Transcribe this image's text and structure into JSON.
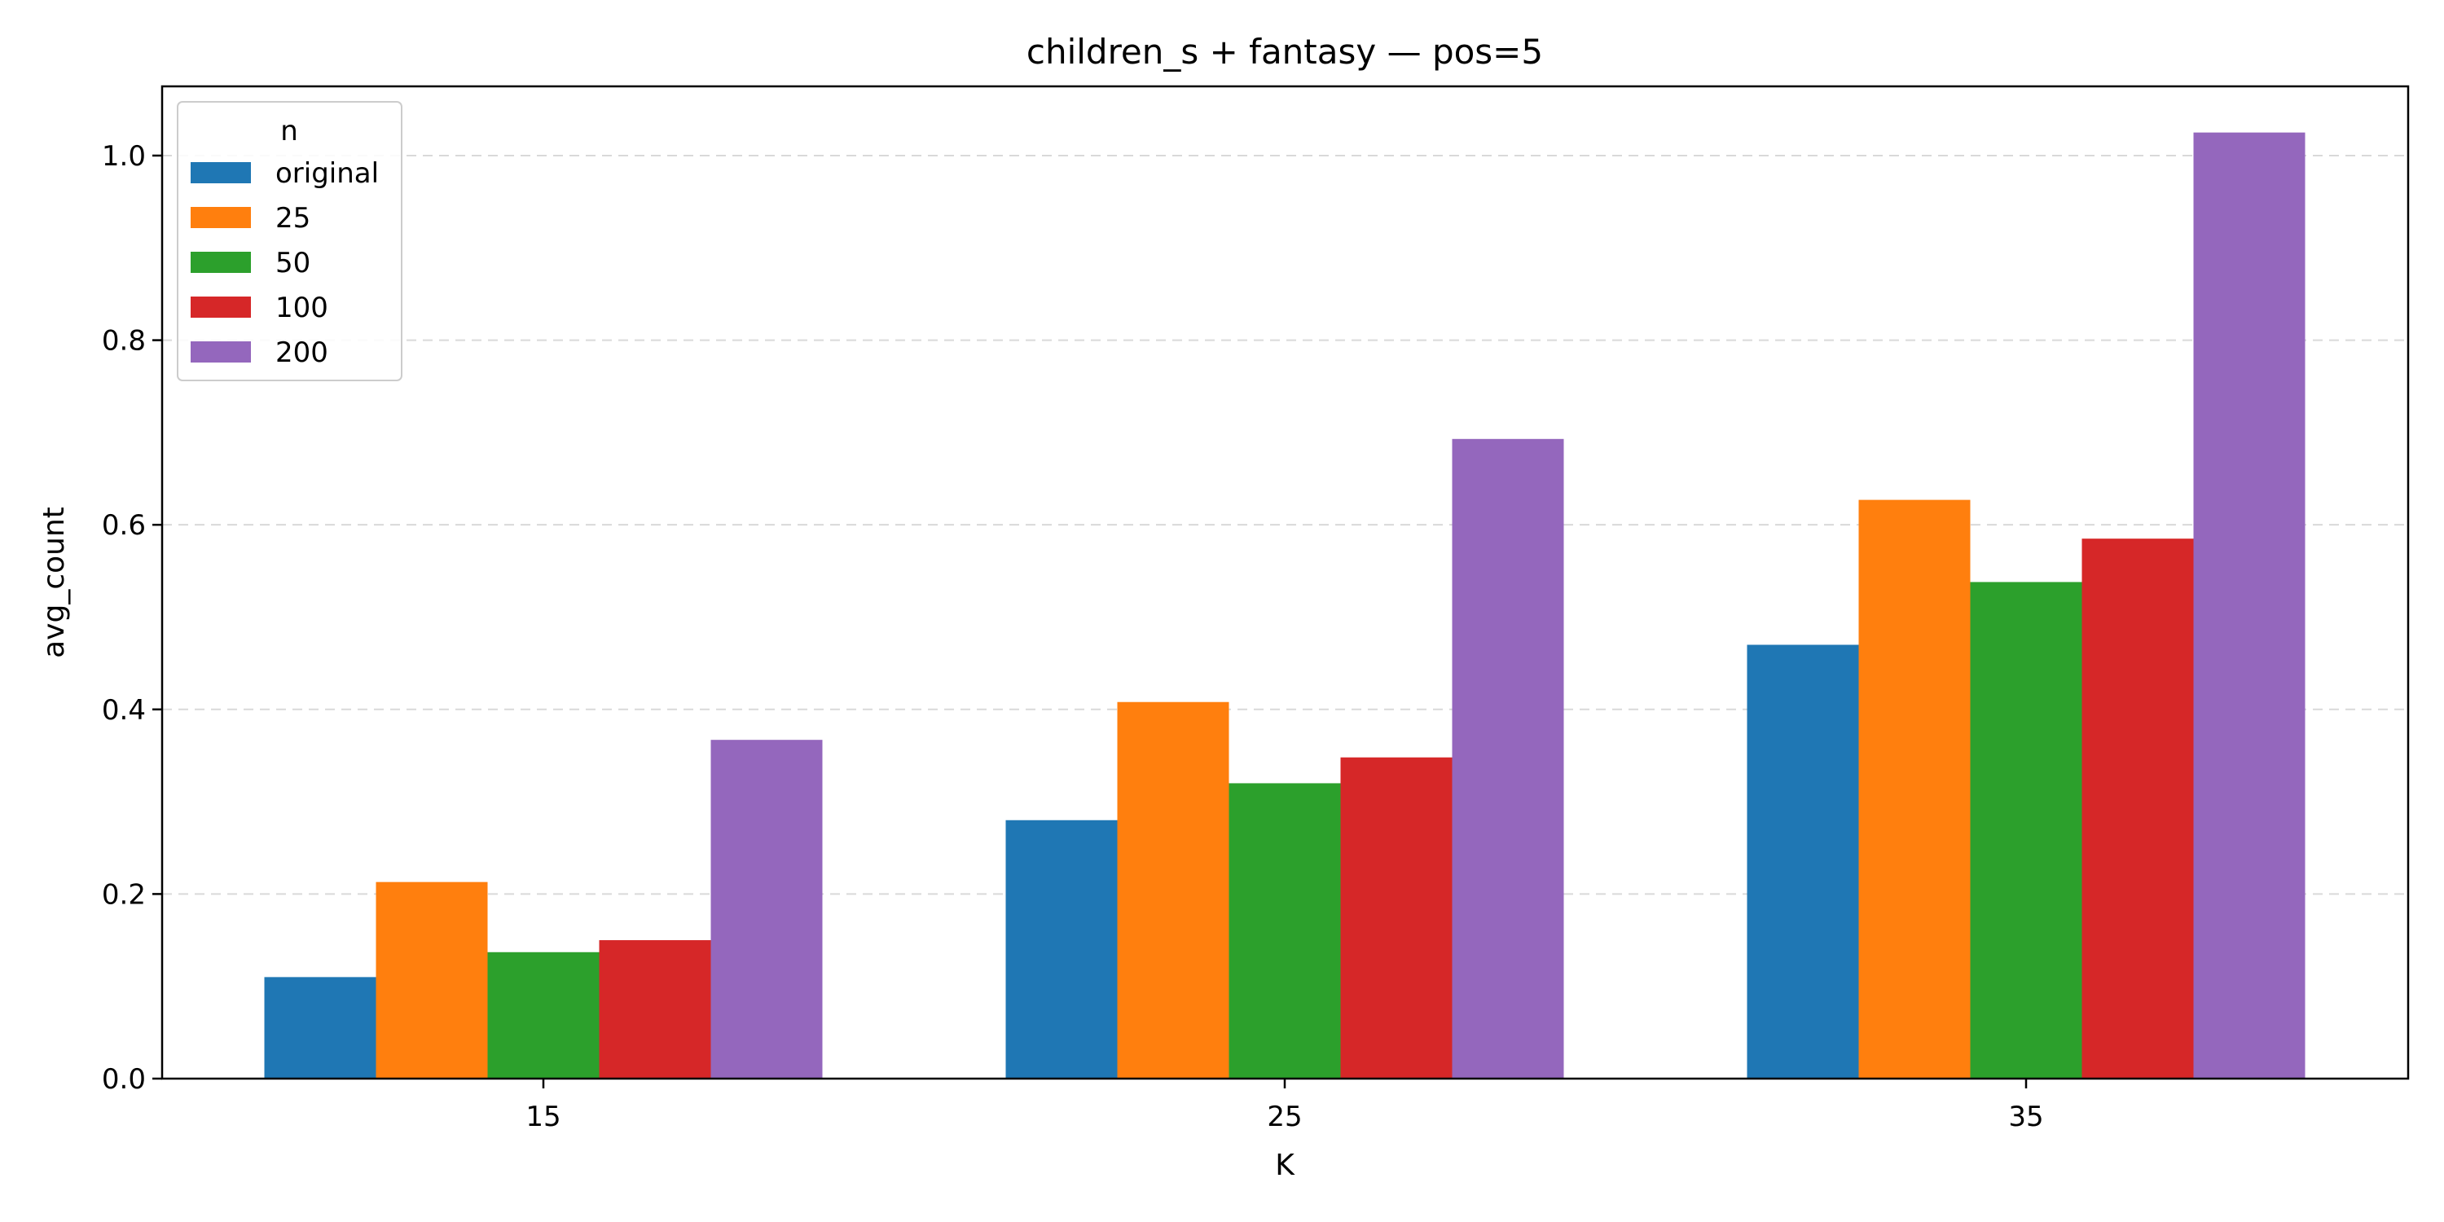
{
  "chart_data": {
    "type": "bar",
    "title": "children_s + fantasy — pos=5",
    "xlabel": "K",
    "ylabel": "avg_count",
    "categories": [
      "15",
      "25",
      "35"
    ],
    "ylim": [
      0,
      1.075
    ],
    "yticks": [
      "0.0",
      "0.2",
      "0.4",
      "0.6",
      "0.8",
      "1.0"
    ],
    "grid": "y-dashed",
    "legend": {
      "title": "n",
      "placement": "top-left"
    },
    "series": [
      {
        "name": "original",
        "color": "#1f77b4",
        "values": [
          0.11,
          0.28,
          0.47
        ]
      },
      {
        "name": "25",
        "color": "#ff7f0e",
        "values": [
          0.213,
          0.408,
          0.627
        ]
      },
      {
        "name": "50",
        "color": "#2ca02c",
        "values": [
          0.137,
          0.32,
          0.538
        ]
      },
      {
        "name": "100",
        "color": "#d62728",
        "values": [
          0.15,
          0.348,
          0.585
        ]
      },
      {
        "name": "200",
        "color": "#9467bd",
        "values": [
          0.367,
          0.693,
          1.025
        ]
      }
    ]
  }
}
